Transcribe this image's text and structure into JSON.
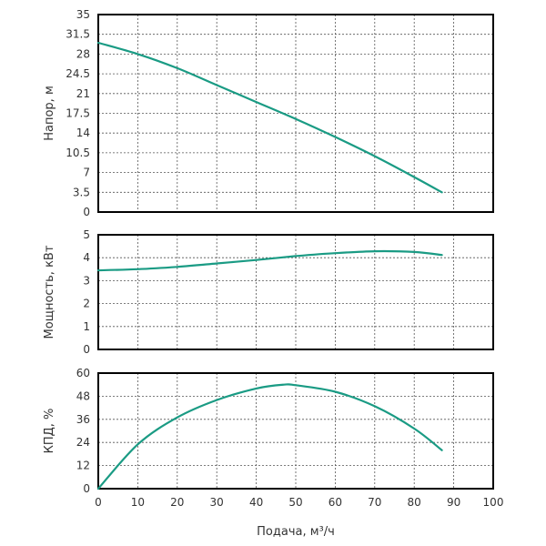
{
  "chart_data": [
    {
      "type": "line",
      "ylabel": "Напор, м",
      "xlim": [
        0,
        100
      ],
      "ylim": [
        0,
        35
      ],
      "x_ticks": [
        0,
        10,
        20,
        30,
        40,
        50,
        60,
        70,
        80,
        90,
        100
      ],
      "y_ticks": [
        "0",
        "3.5",
        "7",
        "10.5",
        "14",
        "17.5",
        "21",
        "24.5",
        "28",
        "31.5",
        "35"
      ],
      "grid": true,
      "series": [
        {
          "color": "#1a9b84",
          "x": [
            0,
            10,
            20,
            30,
            40,
            50,
            60,
            70,
            80,
            87
          ],
          "y": [
            30,
            28,
            25.5,
            22.5,
            19.5,
            16.5,
            13.3,
            9.9,
            6.2,
            3.5
          ]
        }
      ]
    },
    {
      "type": "line",
      "ylabel": "Мощность, кВт",
      "xlim": [
        0,
        100
      ],
      "ylim": [
        0,
        5
      ],
      "x_ticks": [
        0,
        10,
        20,
        30,
        40,
        50,
        60,
        70,
        80,
        90,
        100
      ],
      "y_ticks": [
        "0",
        "1",
        "2",
        "3",
        "4",
        "5"
      ],
      "grid": true,
      "series": [
        {
          "color": "#1a9b84",
          "x": [
            0,
            10,
            20,
            30,
            40,
            50,
            60,
            70,
            80,
            87
          ],
          "y": [
            3.45,
            3.5,
            3.6,
            3.75,
            3.9,
            4.07,
            4.2,
            4.28,
            4.25,
            4.12
          ]
        }
      ]
    },
    {
      "type": "line",
      "ylabel": "КПД, %",
      "xlabel": "Подача, м³/ч",
      "xlim": [
        0,
        100
      ],
      "ylim": [
        0,
        60
      ],
      "x_ticks": [
        0,
        10,
        20,
        30,
        40,
        50,
        60,
        70,
        80,
        90,
        100
      ],
      "y_ticks": [
        "0",
        "12",
        "24",
        "36",
        "48",
        "60"
      ],
      "grid": true,
      "series": [
        {
          "color": "#1a9b84",
          "x": [
            0,
            10,
            20,
            30,
            40,
            47,
            50,
            60,
            70,
            80,
            87
          ],
          "y": [
            0,
            23,
            37,
            46,
            52,
            54,
            53.7,
            50.3,
            42.8,
            31.2,
            20
          ]
        }
      ]
    }
  ]
}
